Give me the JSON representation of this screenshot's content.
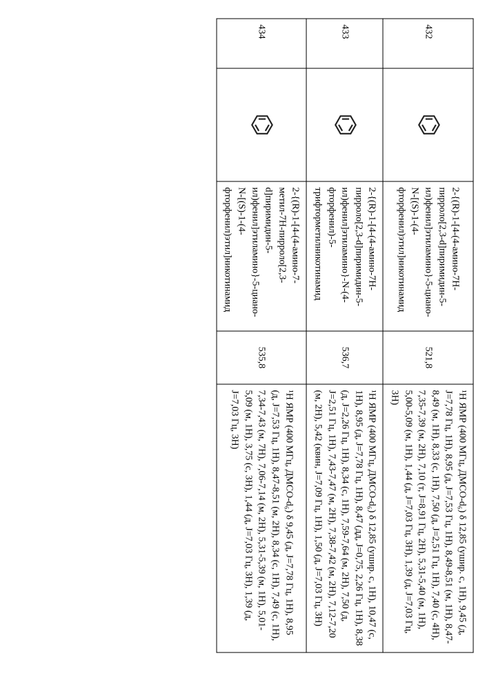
{
  "rows": [
    {
      "id": "432",
      "struct_glyph": "⌬",
      "name": "2-{(R)-1-[4-(4-амино-7H-пирроло[2,3-d]пиримидин-5-ил)фенил]этиламино}-5-циано-N-[(S)-1-(4-фторфенил)этил]никотинамид",
      "mass": "521,8",
      "nmr": "¹H ЯМР (400 МГц, ДМСО-d₆) δ 12,85 (ушир. с, 1H), 9,45 (д, J=7,78 Гц, 1H), 8,95 (д, J=7,53 Гц, 1H), 8,49-8,51 (м, 1H), 8,47-8,49 (м, 1H), 8,33 (с, 1H), 7,50 (д, J=2,51 Гц, 1H), 7,40 (с, 4H), 7,35-7,39 (м, 2H), 7,10 (т, J=8,91 Гц, 2H), 5,31-5,40 (м, 1H), 5,00-5,09 (м, 1H), 1,44 (д, J=7,03 Гц, 3H), 1,39 (д, J=7,03 Гц, 3H)"
    },
    {
      "id": "433",
      "struct_glyph": "⌬",
      "name": "2-{(R)-1-[4-(4-амино-7H-пирроло[2,3-d]пиримидин-5-ил)фенил]этиламино}-N-(4-фторфенил)-5-трифторметилникотинамид",
      "mass": "536,7",
      "nmr": "¹H ЯМР (400 МГц, ДМСО-d₆) δ 12,85 (ушир. с, 1H), 10,47 (с, 1H), 8,95 (д, J=7,78 Гц, 1H), 8,47 (дд, J=0,75, 2,26 Гц, 1H), 8,38 (д, J=2,26 Гц, 1H), 8,34 (с, 1H), 7,59-7,64 (м, 2H), 7,50 (д, J=2,51 Гц, 1H), 7,43-7,47 (м, 2H), 7,38-7,42 (м, 2H), 7,12-7,20 (м, 2H), 5,42 (квин, J=7,09 Гц, 1H), 1,50 (д, J=7,03 Гц, 3H)"
    },
    {
      "id": "434",
      "struct_glyph": "⌬",
      "name": "2-{(R)-1-[4-(4-амино-7-метил-7H-пирроло[2,3-d]пиримидин-5-ил)фенил]этиламино}-5-циано-N-[(S)-1-(4-фторфенил)этил]никотинамид",
      "mass": "535,8",
      "nmr": "¹H ЯМР (400 МГц, ДМСО-d₆) δ 9,45 (д, J=7,78 Гц, 1H), 8,95 (д, J=7,53 Гц, 1H), 8,47-8,51 (м, 2H), 8,34 (с, 1H), 7,49 (с, 1H), 7,34-7,43 (м, 7H), 7,06-7,14 (м, 2H), 5,31-5,39 (м, 1H), 5,01-5,09 (м, 1H), 3,75 (с, 3H), 1,44 (д, J=7,03 Гц, 3H), 1,39 (д, J=7,03 Гц, 3H)"
    }
  ]
}
